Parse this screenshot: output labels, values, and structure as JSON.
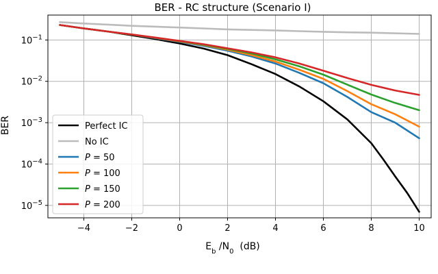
{
  "chart_data": {
    "type": "line",
    "title": "BER - RC structure (Scenario I)",
    "xlabel": "E_b /N_0  (dB)",
    "ylabel": "BER",
    "xlim": [
      -5.5,
      10.5
    ],
    "ylim": [
      5e-06,
      0.4
    ],
    "yscale": "log",
    "grid": true,
    "legend_position": "lower-left",
    "xticks": [
      -4,
      -2,
      0,
      2,
      4,
      6,
      8,
      10
    ],
    "xtick_labels": [
      "−4",
      "−2",
      "0",
      "2",
      "4",
      "6",
      "8",
      "10"
    ],
    "yticks": [
      1e-05,
      0.0001,
      0.001,
      0.01,
      0.1
    ],
    "ytick_labels": [
      {
        "base": "10",
        "exp": "−5"
      },
      {
        "base": "10",
        "exp": "−4"
      },
      {
        "base": "10",
        "exp": "−3"
      },
      {
        "base": "10",
        "exp": "−2"
      },
      {
        "base": "10",
        "exp": "−1"
      }
    ],
    "x": [
      -5,
      -4,
      -3,
      -2,
      -1,
      0,
      1,
      2,
      3,
      4,
      5,
      6,
      7,
      8,
      8.5,
      9,
      9.5,
      10
    ],
    "series": [
      {
        "name": "Perfect IC",
        "color": "#000000",
        "values": [
          0.23,
          0.19,
          0.16,
          0.13,
          0.105,
          0.082,
          0.062,
          0.043,
          0.026,
          0.015,
          0.0075,
          0.0033,
          0.0012,
          0.00032,
          0.00013,
          5e-05,
          2e-05,
          7e-06
        ]
      },
      {
        "name": "No IC",
        "color": "#bbbbbb",
        "values": [
          0.27,
          0.25,
          0.235,
          0.22,
          0.21,
          0.2,
          0.19,
          0.18,
          0.175,
          0.17,
          0.163,
          0.158,
          0.153,
          0.15,
          null,
          null,
          null,
          0.14
        ]
      },
      {
        "name": "P = 50",
        "color": "#1f77b4",
        "values": [
          0.23,
          0.19,
          0.16,
          0.135,
          0.11,
          0.09,
          0.072,
          0.055,
          0.04,
          0.027,
          0.016,
          0.009,
          0.0042,
          0.0018,
          null,
          0.001,
          null,
          0.00042
        ]
      },
      {
        "name": "P = 100",
        "color": "#ff7f0e",
        "values": [
          0.23,
          0.19,
          0.16,
          0.135,
          0.112,
          0.092,
          0.075,
          0.058,
          0.043,
          0.03,
          0.019,
          0.0115,
          0.0058,
          0.0028,
          null,
          0.0016,
          null,
          0.0008
        ]
      },
      {
        "name": "P = 150",
        "color": "#2ca02c",
        "values": [
          0.23,
          0.19,
          0.16,
          0.135,
          0.113,
          0.094,
          0.077,
          0.061,
          0.047,
          0.034,
          0.023,
          0.0145,
          0.0083,
          0.0048,
          null,
          0.003,
          null,
          0.002
        ]
      },
      {
        "name": "P = 200",
        "color": "#d62728",
        "values": [
          0.23,
          0.19,
          0.16,
          0.136,
          0.114,
          0.095,
          0.079,
          0.063,
          0.05,
          0.038,
          0.027,
          0.018,
          0.012,
          0.0082,
          null,
          0.006,
          null,
          0.0047
        ]
      }
    ]
  }
}
